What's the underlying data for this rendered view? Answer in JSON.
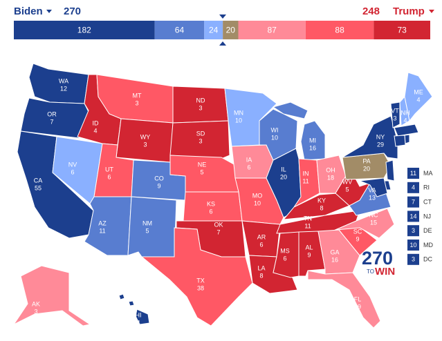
{
  "header": {
    "left_name": "Biden",
    "left_votes": 270,
    "right_votes": 248,
    "right_name": "Trump"
  },
  "bar": {
    "segments": [
      {
        "value": 182,
        "color": "#1c3f8e"
      },
      {
        "value": 64,
        "color": "#587dd0"
      },
      {
        "value": 24,
        "color": "#8ab0ff"
      },
      {
        "value": 20,
        "color": "#a28c67"
      },
      {
        "value": 87,
        "color": "#ff8a98"
      },
      {
        "value": 88,
        "color": "#ff5865"
      },
      {
        "value": 73,
        "color": "#d22532"
      }
    ]
  },
  "states": [
    {
      "abbr": "WA",
      "votes": 12,
      "color": "#1c3f8e"
    },
    {
      "abbr": "OR",
      "votes": 7,
      "color": "#1c3f8e"
    },
    {
      "abbr": "CA",
      "votes": 55,
      "color": "#1c3f8e"
    },
    {
      "abbr": "NV",
      "votes": 6,
      "color": "#8ab0ff"
    },
    {
      "abbr": "ID",
      "votes": 4,
      "color": "#d22532"
    },
    {
      "abbr": "MT",
      "votes": 3,
      "color": "#ff5865"
    },
    {
      "abbr": "WY",
      "votes": 3,
      "color": "#d22532"
    },
    {
      "abbr": "UT",
      "votes": 6,
      "color": "#ff5865"
    },
    {
      "abbr": "CO",
      "votes": 9,
      "color": "#587dd0"
    },
    {
      "abbr": "AZ",
      "votes": 11,
      "color": "#587dd0"
    },
    {
      "abbr": "NM",
      "votes": 5,
      "color": "#587dd0"
    },
    {
      "abbr": "ND",
      "votes": 3,
      "color": "#d22532"
    },
    {
      "abbr": "SD",
      "votes": 3,
      "color": "#d22532"
    },
    {
      "abbr": "NE",
      "votes": 5,
      "color": "#ff5865"
    },
    {
      "abbr": "KS",
      "votes": 6,
      "color": "#ff5865"
    },
    {
      "abbr": "OK",
      "votes": 7,
      "color": "#d22532"
    },
    {
      "abbr": "TX",
      "votes": 38,
      "color": "#ff5865"
    },
    {
      "abbr": "MN",
      "votes": 10,
      "color": "#8ab0ff"
    },
    {
      "abbr": "IA",
      "votes": 6,
      "color": "#ff8a98"
    },
    {
      "abbr": "MO",
      "votes": 10,
      "color": "#ff5865"
    },
    {
      "abbr": "AR",
      "votes": 6,
      "color": "#d22532"
    },
    {
      "abbr": "LA",
      "votes": 8,
      "color": "#d22532"
    },
    {
      "abbr": "WI",
      "votes": 10,
      "color": "#587dd0"
    },
    {
      "abbr": "IL",
      "votes": 20,
      "color": "#1c3f8e"
    },
    {
      "abbr": "MI",
      "votes": 16,
      "color": "#587dd0"
    },
    {
      "abbr": "IN",
      "votes": 11,
      "color": "#ff5865"
    },
    {
      "abbr": "OH",
      "votes": 18,
      "color": "#ff8a98"
    },
    {
      "abbr": "KY",
      "votes": 8,
      "color": "#d22532"
    },
    {
      "abbr": "TN",
      "votes": 11,
      "color": "#d22532"
    },
    {
      "abbr": "MS",
      "votes": 6,
      "color": "#d22532"
    },
    {
      "abbr": "AL",
      "votes": 9,
      "color": "#d22532"
    },
    {
      "abbr": "GA",
      "votes": 16,
      "color": "#ff8a98"
    },
    {
      "abbr": "FL",
      "votes": 29,
      "color": "#ff8a98"
    },
    {
      "abbr": "SC",
      "votes": 9,
      "color": "#ff5865"
    },
    {
      "abbr": "NC",
      "votes": 15,
      "color": "#ff8a98"
    },
    {
      "abbr": "VA",
      "votes": 13,
      "color": "#587dd0"
    },
    {
      "abbr": "WV",
      "votes": 5,
      "color": "#d22532"
    },
    {
      "abbr": "PA",
      "votes": 20,
      "color": "#a28c67"
    },
    {
      "abbr": "NY",
      "votes": 29,
      "color": "#1c3f8e"
    },
    {
      "abbr": "VT",
      "votes": 3,
      "color": "#1c3f8e"
    },
    {
      "abbr": "NH",
      "votes": 4,
      "color": "#8ab0ff"
    },
    {
      "abbr": "ME",
      "votes": 4,
      "color": "#8ab0ff"
    },
    {
      "abbr": "AK",
      "votes": 3,
      "color": "#ff8a98"
    },
    {
      "abbr": "HI",
      "votes": 4,
      "color": "#1c3f8e"
    },
    {
      "abbr": "MA",
      "votes": 11,
      "color": "#1c3f8e"
    },
    {
      "abbr": "RI",
      "votes": 4,
      "color": "#1c3f8e"
    },
    {
      "abbr": "CT",
      "votes": 7,
      "color": "#1c3f8e"
    },
    {
      "abbr": "NJ",
      "votes": 14,
      "color": "#1c3f8e"
    },
    {
      "abbr": "DE",
      "votes": 3,
      "color": "#1c3f8e"
    },
    {
      "abbr": "MD",
      "votes": 10,
      "color": "#1c3f8e"
    },
    {
      "abbr": "DC",
      "votes": 3,
      "color": "#1c3f8e"
    }
  ],
  "logo": {
    "number": "270",
    "to": "TO",
    "win": "WIN"
  }
}
